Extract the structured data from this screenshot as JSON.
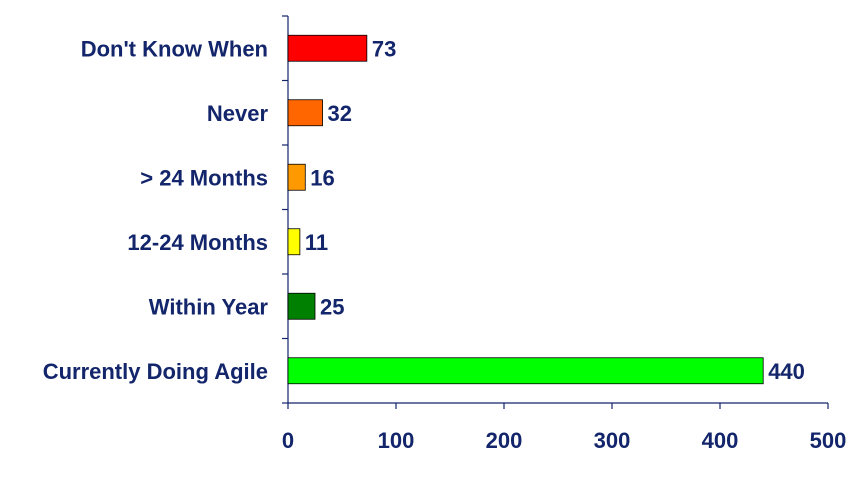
{
  "chart_data": {
    "type": "bar",
    "orientation": "horizontal",
    "categories": [
      "Don't Know When",
      "Never",
      "> 24 Months",
      "12-24 Months",
      "Within Year",
      "Currently Doing Agile"
    ],
    "values": [
      73,
      32,
      16,
      11,
      25,
      440
    ],
    "colors": [
      "#ff0000",
      "#ff6600",
      "#ff9900",
      "#ffff00",
      "#008000",
      "#00ff00"
    ],
    "xlim": [
      0,
      500
    ],
    "xticks": [
      0,
      100,
      200,
      300,
      400,
      500
    ],
    "grid": false,
    "legend": "none",
    "data_labels": true
  }
}
